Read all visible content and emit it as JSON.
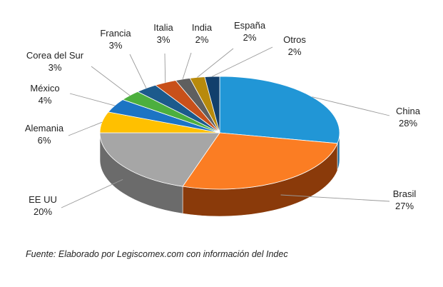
{
  "chart_data": {
    "type": "pie",
    "style": "3d",
    "slices": [
      {
        "label": "China",
        "value": 28,
        "display": "28%",
        "color": "#2196d6",
        "side": "#17679a"
      },
      {
        "label": "Brasil",
        "value": 27,
        "display": "27%",
        "color": "#fb7d23",
        "side": "#8a3a0a"
      },
      {
        "label": "EE UU",
        "value": 20,
        "display": "20%",
        "color": "#a6a6a6",
        "side": "#6b6b6b"
      },
      {
        "label": "Alemania",
        "value": 6,
        "display": "6%",
        "color": "#ffc000",
        "side": "#b08600"
      },
      {
        "label": "México",
        "value": 4,
        "display": "4%",
        "color": "#1c74c4",
        "side": "#134e86"
      },
      {
        "label": "Corea del Sur",
        "value": 3,
        "display": "3%",
        "color": "#4caf3e",
        "side": "#2f6e27"
      },
      {
        "label": "Francia",
        "value": 3,
        "display": "3%",
        "color": "#1c5a8c",
        "side": "#103756"
      },
      {
        "label": "Italia",
        "value": 3,
        "display": "3%",
        "color": "#c8501a",
        "side": "#7c3010"
      },
      {
        "label": "India",
        "value": 2,
        "display": "2%",
        "color": "#5f5f5f",
        "side": "#3c3c3c"
      },
      {
        "label": "España",
        "value": 2,
        "display": "2%",
        "color": "#b88a0c",
        "side": "#755806"
      },
      {
        "label": "Otros",
        "value": 2,
        "display": "2%",
        "color": "#123f6c",
        "side": "#0b2846"
      }
    ]
  },
  "source_note": "Fuente: Elaborado por Legiscomex.com con información del Indec"
}
